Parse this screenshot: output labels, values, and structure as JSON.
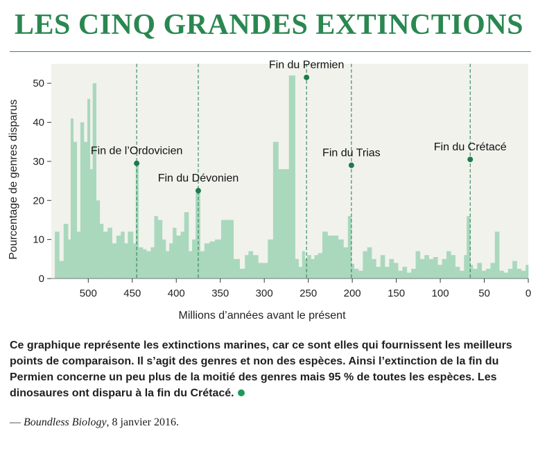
{
  "title": "LES CINQ GRANDES EXTINCTIONS",
  "colors": {
    "title": "#2a8750",
    "area": "#a9d8bd",
    "marker": "#1f7a4c",
    "dot": "#1e9a58",
    "plot_bg": "#f1f2ec"
  },
  "chart_data": {
    "type": "bar",
    "xlabel": "Millions d’années avant le présent",
    "ylabel": "Pourcentage de genres disparus",
    "xlim": [
      542,
      0
    ],
    "ylim": [
      0,
      55
    ],
    "xticks": [
      500,
      450,
      400,
      350,
      300,
      250,
      200,
      150,
      100,
      50,
      0
    ],
    "yticks": [
      0,
      10,
      20,
      30,
      40,
      50
    ],
    "grid": false,
    "series": [
      {
        "x": [
          538,
          533,
          528,
          523,
          520,
          517,
          513,
          509,
          505,
          501,
          498,
          495,
          491,
          487,
          483,
          478,
          473,
          468,
          463,
          459,
          455,
          449,
          446,
          443,
          438,
          434,
          429,
          425,
          421,
          416,
          412,
          408,
          404,
          400,
          395,
          391,
          386,
          382,
          378,
          373,
          368,
          362,
          356,
          349,
          342,
          335,
          328,
          322,
          318,
          313,
          307,
          302,
          296,
          290,
          284,
          278,
          272,
          265,
          261,
          257,
          254,
          251,
          247,
          243,
          239,
          234,
          228,
          222,
          216,
          210,
          205,
          201,
          198,
          193,
          188,
          183,
          178,
          173,
          168,
          163,
          158,
          153,
          148,
          143,
          138,
          133,
          128,
          123,
          118,
          113,
          108,
          103,
          98,
          93,
          88,
          83,
          78,
          73,
          70,
          66,
          63,
          58,
          53,
          48,
          43,
          38,
          33,
          28,
          23,
          18,
          13,
          8,
          3
        ],
        "values": [
          12,
          4.5,
          14,
          10,
          41,
          35,
          12,
          40,
          35,
          46,
          28,
          50,
          20,
          14,
          12,
          13,
          9,
          11,
          12,
          9,
          12,
          9,
          29,
          8,
          7.5,
          7,
          8,
          16,
          15,
          10,
          7,
          9,
          13,
          11,
          12,
          17,
          7,
          10,
          22,
          7,
          9,
          9.5,
          10,
          15,
          15,
          5,
          2.5,
          6,
          7,
          6,
          4,
          4,
          10,
          35,
          28,
          28,
          52,
          5,
          3,
          7,
          5,
          6,
          5,
          6,
          6.5,
          12,
          11,
          11,
          10,
          8,
          16,
          3.8,
          2.5,
          2,
          7,
          8,
          5,
          3,
          6,
          3,
          5,
          4,
          2,
          3,
          1.5,
          2.5,
          7,
          5,
          6,
          5,
          5.5,
          3.5,
          5,
          7,
          6,
          3,
          2,
          6,
          16,
          3.5,
          2.5,
          4,
          2,
          2.5,
          4,
          12,
          2,
          1.5,
          2.5,
          4.5,
          2.5,
          2,
          3.5
        ]
      }
    ],
    "annotations": [
      {
        "label": "Fin de l’Ordovicien",
        "x": 445,
        "y": 29.5
      },
      {
        "label": "Fin du Dévonien",
        "x": 375,
        "y": 22.5
      },
      {
        "label": "Fin du Permien",
        "x": 252,
        "y": 51.5
      },
      {
        "label": "Fin du Trias",
        "x": 201,
        "y": 29
      },
      {
        "label": "Fin du Crétacé",
        "x": 66,
        "y": 30.5
      }
    ]
  },
  "caption": "Ce graphique représente les extinctions marines, car ce sont elles qui fournissent les meilleurs points de comparaison. Il s’agit des genres et non des espèces. Ainsi l’extinction de la fin du Permien concerne un peu plus de la moitié des genres mais 95 % de toutes les espèces. Les dinosaures ont disparu à la fin du Crétacé.",
  "source": {
    "dash": "—",
    "work": "Boundless Biology",
    "date": ", 8 janvier 2016."
  }
}
